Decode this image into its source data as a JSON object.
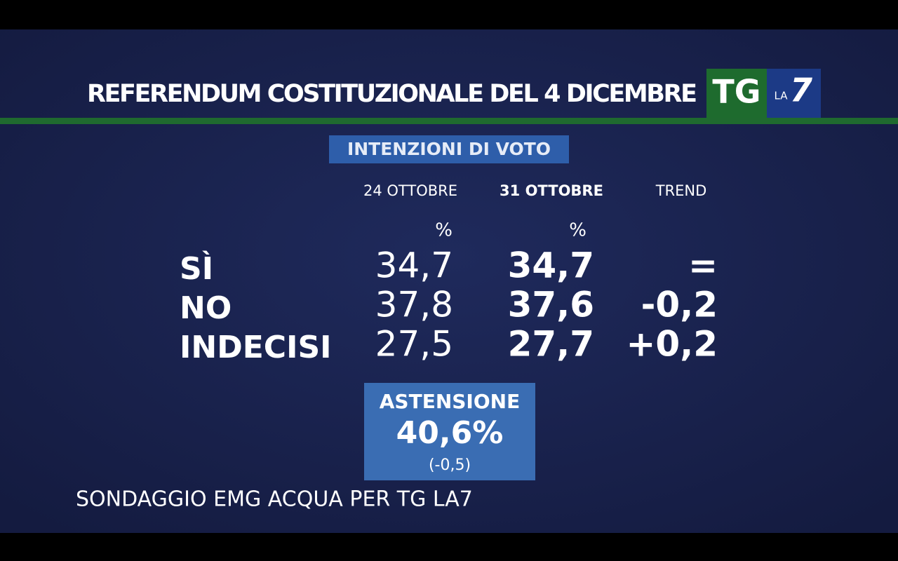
{
  "header": {
    "title": "REFERENDUM COSTITUZIONALE DEL 4 DICEMBRE",
    "logo": {
      "tg": "TG",
      "la": "LA",
      "seven": "7"
    }
  },
  "subtitle": "INTENZIONI DI VOTO",
  "table": {
    "columns": [
      "24 OTTOBRE",
      "31 OTTOBRE",
      "TREND"
    ],
    "units": [
      "%",
      "%"
    ],
    "rows": [
      [
        "SÌ",
        "34,7",
        "34,7",
        "="
      ],
      [
        "NO",
        "37,8",
        "37,6",
        "-0,2"
      ],
      [
        "INDECISI",
        "27,5",
        "27,7",
        "+0,2"
      ]
    ]
  },
  "astensione": {
    "label": "ASTENSIONE",
    "value": "40,6%",
    "change": "(-0,5)"
  },
  "footer": "SONDAGGIO EMG ACQUA PER TG LA7"
}
